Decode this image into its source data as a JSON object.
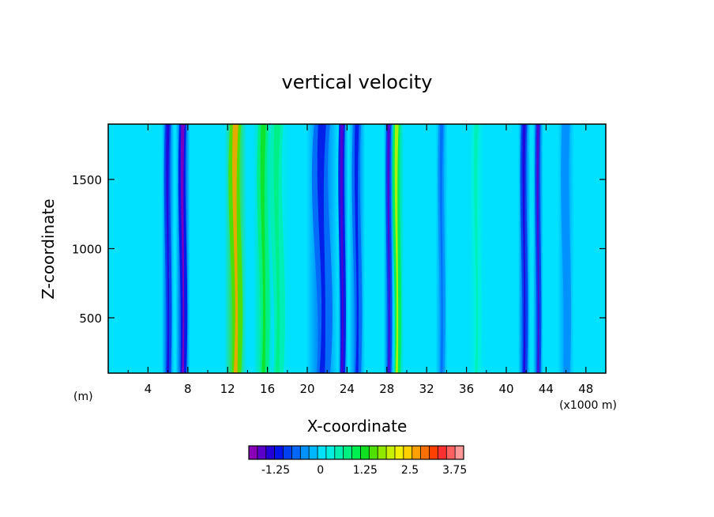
{
  "chart_data": {
    "type": "heatmap",
    "title": "vertical velocity",
    "xlabel": "X-coordinate",
    "ylabel": "Z-coordinate",
    "x_unit": "(x1000 m)",
    "y_unit": "(m)",
    "xlim": [
      0,
      50
    ],
    "ylim": [
      100,
      1900
    ],
    "x_ticks": [
      4,
      8,
      12,
      16,
      20,
      24,
      28,
      32,
      36,
      40,
      44,
      48
    ],
    "y_ticks": [
      500,
      1000,
      1500
    ],
    "colorbar": {
      "levels": [
        -2.0,
        -1.75,
        -1.5,
        -1.25,
        -1.0,
        -0.75,
        -0.5,
        -0.25,
        0,
        0.25,
        0.5,
        0.75,
        1.0,
        1.25,
        1.5,
        1.75,
        2.0,
        2.25,
        2.5,
        2.75,
        3.0,
        3.25,
        3.5,
        3.75,
        4.0
      ],
      "tick_labels": [
        "-1.25",
        "0",
        "1.25",
        "2.5",
        "3.75"
      ],
      "tick_values": [
        -1.25,
        0,
        1.25,
        2.5,
        3.75
      ],
      "colors": [
        "#8a00b8",
        "#5a00c8",
        "#2400d8",
        "#0014e8",
        "#0040f0",
        "#0068f8",
        "#0090ff",
        "#00b8ff",
        "#00e0ff",
        "#00f0e0",
        "#00f0b0",
        "#00f080",
        "#00f050",
        "#10e020",
        "#50e000",
        "#90e800",
        "#c8f000",
        "#f0f000",
        "#ffd000",
        "#ffa000",
        "#ff7000",
        "#ff4000",
        "#ff3030",
        "#ff6060",
        "#ff9898"
      ]
    },
    "features": [
      {
        "x": 7.5,
        "value": -1.9,
        "width": 0.7
      },
      {
        "x": 6.0,
        "value": -1.4,
        "width": 0.6
      },
      {
        "x": 12.8,
        "value": 2.9,
        "width": 1.1
      },
      {
        "x": 15.6,
        "value": 1.4,
        "width": 1.0
      },
      {
        "x": 17.0,
        "value": 0.9,
        "width": 1.2
      },
      {
        "x": 21.5,
        "value": -1.2,
        "width": 1.6
      },
      {
        "x": 23.5,
        "value": -1.7,
        "width": 0.6
      },
      {
        "x": 25.0,
        "value": -1.1,
        "width": 0.8
      },
      {
        "x": 28.2,
        "value": -1.6,
        "width": 0.5
      },
      {
        "x": 29.0,
        "value": 2.0,
        "width": 0.7
      },
      {
        "x": 33.5,
        "value": -0.7,
        "width": 0.6
      },
      {
        "x": 37.0,
        "value": 0.6,
        "width": 0.8
      },
      {
        "x": 41.8,
        "value": -1.4,
        "width": 0.6
      },
      {
        "x": 43.2,
        "value": -1.6,
        "width": 0.5
      },
      {
        "x": 46.0,
        "value": -0.5,
        "width": 0.8
      }
    ]
  }
}
